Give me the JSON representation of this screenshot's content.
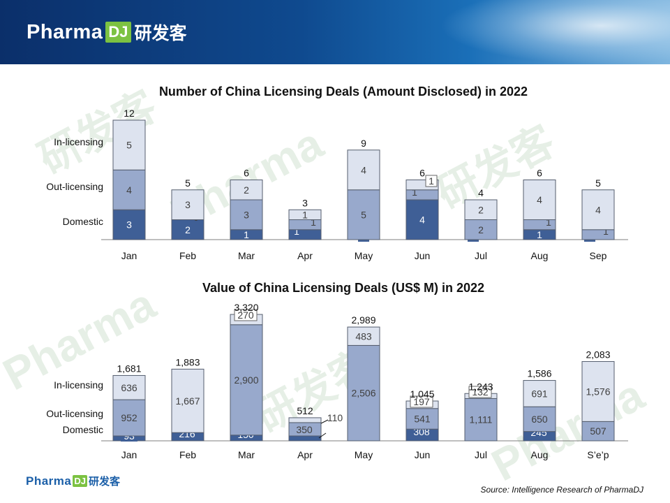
{
  "header": {
    "brand_word": "Pharma",
    "brand_box": "DJ",
    "brand_cn": "研发客"
  },
  "footer": {
    "brand_word": "Pharma",
    "brand_box": "DJ",
    "brand_cn": "研发客",
    "source": "Source: Intelligence Research of PharmaDJ"
  },
  "colors": {
    "domestic": "#3f5f96",
    "out_licensing": "#98a9cc",
    "in_licensing": "#dde3ef",
    "label_light": "#ffffff",
    "label_dark": "#404040"
  },
  "chart_data": [
    {
      "type": "bar",
      "stacked": true,
      "title": "Number of China Licensing Deals (Amount Disclosed) in 2022",
      "categories": [
        "Jan",
        "Feb",
        "Mar",
        "Apr",
        "May",
        "Jun",
        "Jul",
        "Aug",
        "Sep"
      ],
      "series": [
        {
          "name": "Domestic",
          "values": [
            3,
            2,
            1,
            1,
            0,
            4,
            0,
            1,
            0
          ]
        },
        {
          "name": "Out-licensing",
          "values": [
            4,
            0,
            3,
            1,
            5,
            1,
            2,
            1,
            1
          ]
        },
        {
          "name": "In-licensing",
          "values": [
            5,
            3,
            2,
            1,
            4,
            1,
            2,
            4,
            4
          ]
        }
      ],
      "totals": [
        12,
        5,
        6,
        3,
        9,
        6,
        4,
        6,
        5
      ],
      "ylim": [
        0,
        12
      ]
    },
    {
      "type": "bar",
      "stacked": true,
      "title": "Value of China Licensing Deals (US$ M) in 2022",
      "categories": [
        "Jan",
        "Feb",
        "Mar",
        "Apr",
        "May",
        "Jun",
        "Jul",
        "Aug",
        "S’e’p"
      ],
      "series": [
        {
          "name": "Domestic",
          "values": [
            "93",
            "216",
            "150",
            "52",
            null,
            "308",
            null,
            "245",
            null
          ]
        },
        {
          "name": "Out-licensing",
          "values": [
            "952",
            null,
            "2,900",
            "350",
            "2,506",
            "541",
            "1,111",
            "650",
            "507"
          ]
        },
        {
          "name": "In-licensing",
          "values": [
            "636",
            "1,667",
            "270",
            "110",
            "483",
            "197",
            "132",
            "691",
            "1,576"
          ]
        }
      ],
      "totals": [
        "1,681",
        "1,883",
        "3,320",
        "512",
        "2,989",
        "1,045",
        "1,243",
        "1,586",
        "2,083"
      ],
      "ylim": [
        0,
        3320
      ]
    }
  ]
}
